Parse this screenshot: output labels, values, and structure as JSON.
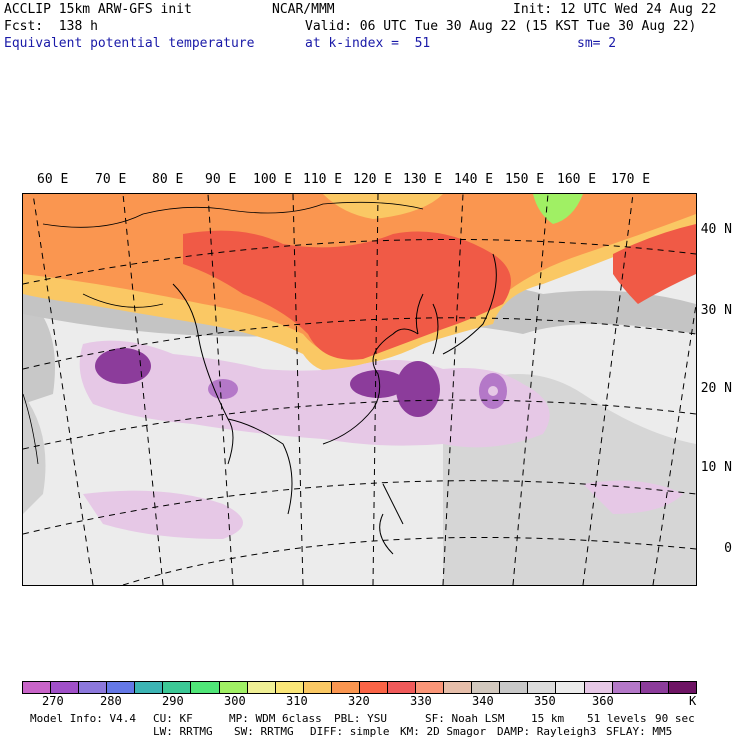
{
  "header": {
    "model": "ACCLIP 15km ARW-GFS init",
    "org": "NCAR/MMM",
    "init": "Init: 12 UTC Wed 24 Aug 22",
    "fcst": "Fcst:  138 h",
    "valid": "Valid: 06 UTC Tue 30 Aug 22 (15 KST Tue 30 Aug 22)",
    "field": "Equivalent potential temperature",
    "level": "at k-index =  51",
    "smooth": "sm= 2"
  },
  "map": {
    "lon_labels": [
      "60 E",
      "70 E",
      "80 E",
      "90 E",
      "100 E",
      "110 E",
      "120 E",
      "130 E",
      "140 E",
      "150 E",
      "160 E",
      "170 E"
    ],
    "lat_labels": [
      "40 N",
      "30 N",
      "20 N",
      "10 N",
      "0"
    ],
    "colors": {
      "ocean": "#eeeeee",
      "coast": "#000000",
      "grid": "#000000"
    }
  },
  "colorbar": {
    "colors": [
      "#c864c8",
      "#a050c8",
      "#8c78dc",
      "#6478e6",
      "#3cb4b4",
      "#3cc896",
      "#50e678",
      "#a0f064",
      "#f0f096",
      "#fae678",
      "#fac864",
      "#fa9650",
      "#fa6446",
      "#f05a5a",
      "#fa9678",
      "#e6beaa",
      "#d2c8be",
      "#c8c8c8",
      "#dcdcdc",
      "#ebebeb",
      "#e6c8e6",
      "#b478c8",
      "#8c3c9b",
      "#6e1464"
    ],
    "ticks": [
      "270",
      "280",
      "290",
      "300",
      "310",
      "320",
      "330",
      "340",
      "350",
      "360"
    ],
    "unit": "K"
  },
  "footer": {
    "line1": [
      "Model Info: V4.4",
      "CU: KF",
      "MP: WDM 6class",
      "PBL: YSU",
      "SF: Noah LSM",
      "15 km",
      "51 levels",
      "90 sec"
    ],
    "line2": [
      "LW: RRTMG",
      "SW: RRTMG",
      "DIFF: simple",
      "KM: 2D Smagor",
      "DAMP: Rayleigh3",
      "SFLAY: MM5"
    ]
  }
}
